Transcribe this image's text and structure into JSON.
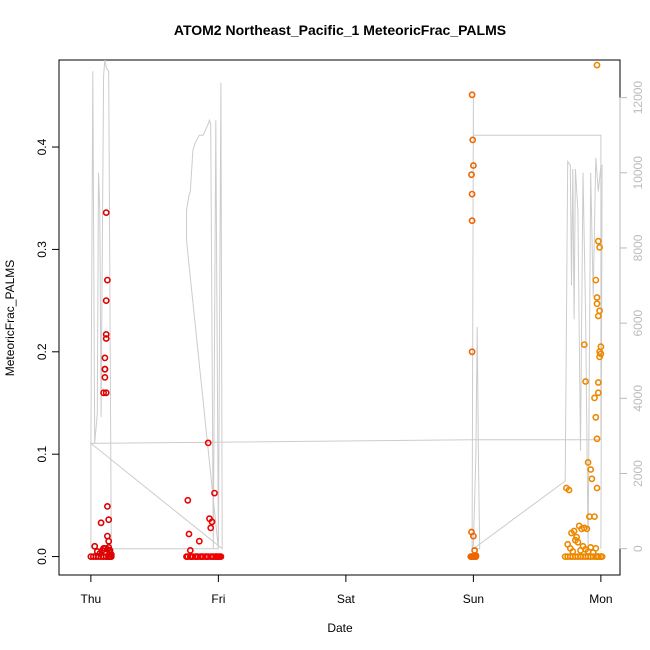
{
  "chart_data": {
    "type": "scatter",
    "title": "ATOM2 Northeast_Pacific_1 MeteoricFrac_PALMS",
    "xlabel": "Date",
    "ylabel": "MeteoricFrac_PALMS",
    "x_unit": "days",
    "xlim": [
      -0.25,
      4.15
    ],
    "ylim": [
      -0.018,
      0.485
    ],
    "y2lim": [
      -700,
      13000
    ],
    "x_ticks": [
      {
        "value": 0,
        "label": "Thu"
      },
      {
        "value": 1,
        "label": "Fri"
      },
      {
        "value": 2,
        "label": "Sat"
      },
      {
        "value": 3,
        "label": "Sun"
      },
      {
        "value": 4,
        "label": "Mon"
      }
    ],
    "y_ticks": [
      {
        "value": 0.0,
        "label": "0.0"
      },
      {
        "value": 0.1,
        "label": "0.1"
      },
      {
        "value": 0.2,
        "label": "0.2"
      },
      {
        "value": 0.3,
        "label": "0.3"
      },
      {
        "value": 0.4,
        "label": "0.4"
      }
    ],
    "y2_ticks": [
      {
        "value": 0,
        "label": "0"
      },
      {
        "value": 2000,
        "label": "2000"
      },
      {
        "value": 4000,
        "label": "4000"
      },
      {
        "value": 6000,
        "label": "6000"
      },
      {
        "value": 8000,
        "label": "8000"
      },
      {
        "value": 10000,
        "label": "10000"
      },
      {
        "value": 12000,
        "label": "12000"
      }
    ],
    "colors": {
      "day1": "#dd0000",
      "day2": "#ee0000",
      "day4": "#ee6600",
      "day5": "#ee8800",
      "altitude_line": "#cccccc"
    },
    "series": [
      {
        "color": "#dd0000",
        "x": [
          0.0,
          0.02,
          0.04,
          0.06,
          0.08,
          0.1,
          0.12,
          0.14,
          0.16,
          0.03,
          0.05,
          0.07,
          0.09,
          0.11,
          0.13,
          0.15,
          0.08,
          0.1,
          0.12,
          0.14,
          0.1,
          0.11,
          0.12,
          0.11,
          0.11,
          0.12,
          0.12,
          0.11,
          0.12,
          0.13,
          0.12,
          0.13,
          0.14,
          0.13,
          0.14,
          0.15,
          0.14,
          0.16,
          0.15
        ],
        "y": [
          0.0,
          0.0,
          0.0,
          0.0,
          0.0,
          0.0,
          0.0,
          0.0,
          0.0,
          0.01,
          0.005,
          0.003,
          0.006,
          0.008,
          0.007,
          0.004,
          0.033,
          0.008,
          0.0,
          0.009,
          0.16,
          0.194,
          0.16,
          0.183,
          0.175,
          0.213,
          0.217,
          0.183,
          0.25,
          0.27,
          0.336,
          0.02,
          0.036,
          0.049,
          0.015,
          0.006,
          0.0,
          0.002,
          0.0
        ]
      },
      {
        "color": "#ee0000",
        "x": [
          0.75,
          0.78,
          0.8,
          0.82,
          0.84,
          0.86,
          0.88,
          0.9,
          0.92,
          0.94,
          0.96,
          0.98,
          1.0,
          1.02,
          0.76,
          0.77,
          0.78,
          0.85,
          0.92,
          0.93,
          0.94,
          0.95,
          0.97,
          0.98,
          0.76,
          0.79,
          0.83,
          0.87,
          0.91,
          0.95,
          0.99,
          1.01
        ],
        "y": [
          0.0,
          0.0,
          0.0,
          0.0,
          0.0,
          0.0,
          0.0,
          0.0,
          0.0,
          0.0,
          0.0,
          0.0,
          0.0,
          0.0,
          0.055,
          0.022,
          0.006,
          0.015,
          0.111,
          0.037,
          0.028,
          0.034,
          0.062,
          0.0,
          0.0,
          0.0,
          0.0,
          0.0,
          0.0,
          0.0,
          0.0,
          0.0
        ]
      },
      {
        "color": "#ee6600",
        "x": [
          2.98,
          2.985,
          2.99,
          2.995,
          3.0,
          3.005,
          3.01,
          3.015,
          3.02,
          2.99,
          2.995,
          3.0,
          2.985,
          2.99,
          2.99,
          2.99,
          2.985,
          3.0,
          3.01,
          3.02,
          2.995
        ],
        "y": [
          0.0,
          0.0,
          0.0,
          0.0,
          0.0,
          0.0,
          0.0,
          0.0,
          0.0,
          0.451,
          0.407,
          0.382,
          0.373,
          0.354,
          0.328,
          0.2,
          0.024,
          0.02,
          0.006,
          0.001,
          0.0
        ]
      },
      {
        "color": "#ee8800",
        "x": [
          3.72,
          3.74,
          3.76,
          3.78,
          3.8,
          3.82,
          3.84,
          3.86,
          3.88,
          3.9,
          3.92,
          3.94,
          3.96,
          3.98,
          4.0,
          4.01,
          3.73,
          3.75,
          3.77,
          3.79,
          3.81,
          3.83,
          3.85,
          3.87,
          3.89,
          3.91,
          3.93,
          3.95,
          3.97,
          3.74,
          3.76,
          3.78,
          3.8,
          3.82,
          3.84,
          3.86,
          3.88,
          3.9,
          3.92,
          3.94,
          3.96,
          3.98,
          4.0,
          3.87,
          3.88,
          3.9,
          3.92,
          3.95,
          3.96,
          3.97,
          3.98,
          3.98,
          3.99,
          3.99,
          4.0,
          4.0,
          3.99,
          3.98,
          3.97,
          3.97,
          3.96,
          3.99,
          3.98,
          3.97,
          3.97,
          3.98,
          4.0
        ],
        "y": [
          0.0,
          0.0,
          0.0,
          0.0,
          0.0,
          0.0,
          0.0,
          0.0,
          0.0,
          0.0,
          0.0,
          0.0,
          0.0,
          0.0,
          0.0,
          0.0,
          0.067,
          0.065,
          0.023,
          0.025,
          0.019,
          0.03,
          0.027,
          0.028,
          0.027,
          0.039,
          0.076,
          0.039,
          0.067,
          0.012,
          0.008,
          0.005,
          0.016,
          0.014,
          0.006,
          0.01,
          0.007,
          0.005,
          0.009,
          0.004,
          0.008,
          0.0,
          0.0,
          0.207,
          0.171,
          0.092,
          0.085,
          0.155,
          0.136,
          0.115,
          0.16,
          0.17,
          0.2,
          0.195,
          0.198,
          0.205,
          0.24,
          0.235,
          0.247,
          0.253,
          0.27,
          0.302,
          0.308,
          0.48,
          0.0,
          0.0,
          0.0
        ]
      }
    ],
    "altitude_line": {
      "color": "#cccccc",
      "x": [
        0.0,
        0.0,
        0.015,
        0.03,
        0.05,
        0.06,
        0.07,
        0.08,
        0.1,
        0.11,
        0.12,
        0.14,
        0.16,
        0.17,
        0.18,
        0.19,
        0.2,
        0.22,
        0.24,
        0.26,
        0.28,
        0.3,
        0.32,
        0.5,
        0.7,
        0.9,
        1.0,
        0.75,
        0.75,
        0.77,
        0.78,
        0.8,
        0.82,
        0.85,
        0.88,
        0.92,
        0.93,
        0.94,
        0.96,
        0.98,
        1.0,
        1.02,
        1.03,
        0.0,
        3.0,
        4.0,
        4.0,
        3.0,
        3.0,
        2.99,
        2.99,
        3.0,
        3.02,
        3.03,
        3.04,
        3.05,
        3.05,
        3.0,
        3.72,
        3.74,
        3.76,
        3.77,
        3.78,
        3.79,
        3.8,
        3.82,
        3.84,
        3.86,
        3.88,
        3.9,
        3.92,
        3.94,
        3.96,
        3.98,
        4.0,
        4.01,
        4.0
      ],
      "y": [
        0.0,
        2800,
        12700,
        2800,
        3600,
        10000,
        9000,
        3500,
        12600,
        13000,
        12800,
        12700,
        0.0,
        0.0,
        0.0,
        0.0,
        0.0,
        0.0,
        0.0,
        0.0,
        0.0,
        0.0,
        0.0,
        0.0,
        0.0,
        0.0,
        0.0,
        8200,
        9000,
        9400,
        9500,
        10600,
        10800,
        11000,
        11000,
        11300,
        11400,
        11300,
        0.0,
        11400,
        0.0,
        12400,
        0.0,
        2800,
        2900,
        2900,
        11000,
        11000,
        12000,
        0.0,
        0.0,
        100,
        2500,
        5900,
        2300,
        0.0,
        0.0,
        0.0,
        1800,
        10300,
        10200,
        7000,
        10100,
        6100,
        10100,
        9000,
        2600,
        10000,
        6200,
        0.0,
        10000,
        6700,
        10400,
        9500,
        10200,
        10200,
        0.0
      ]
    }
  }
}
